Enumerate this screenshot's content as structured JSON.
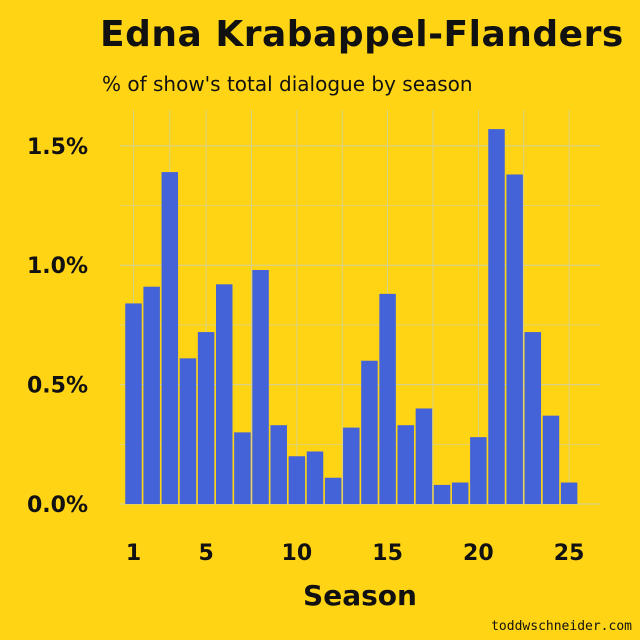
{
  "title": "Edna Krabappel-Flanders",
  "subtitle": "% of show's total dialogue by season",
  "credit": "toddwschneider.com",
  "colors": {
    "background": "#FFD414",
    "bar": "#4563D9",
    "grid": "#CFCFA0"
  },
  "chart_data": {
    "type": "bar",
    "xlabel": "Season",
    "ylabel": "",
    "x_ticks": [
      1,
      5,
      10,
      15,
      20,
      25
    ],
    "y_ticks": [
      "0.0%",
      "0.5%",
      "1.0%",
      "1.5%"
    ],
    "ylim": [
      0,
      1.65
    ],
    "x": [
      1,
      2,
      3,
      4,
      5,
      6,
      7,
      8,
      9,
      10,
      11,
      12,
      13,
      14,
      15,
      16,
      17,
      18,
      19,
      20,
      21,
      22,
      23,
      24,
      25
    ],
    "values": [
      0.84,
      0.91,
      1.39,
      0.61,
      0.72,
      0.92,
      0.3,
      0.98,
      0.33,
      0.2,
      0.22,
      0.11,
      0.32,
      0.6,
      0.88,
      0.33,
      0.4,
      0.08,
      0.09,
      0.28,
      1.57,
      1.38,
      0.72,
      0.37,
      0.09
    ],
    "grid": true
  }
}
